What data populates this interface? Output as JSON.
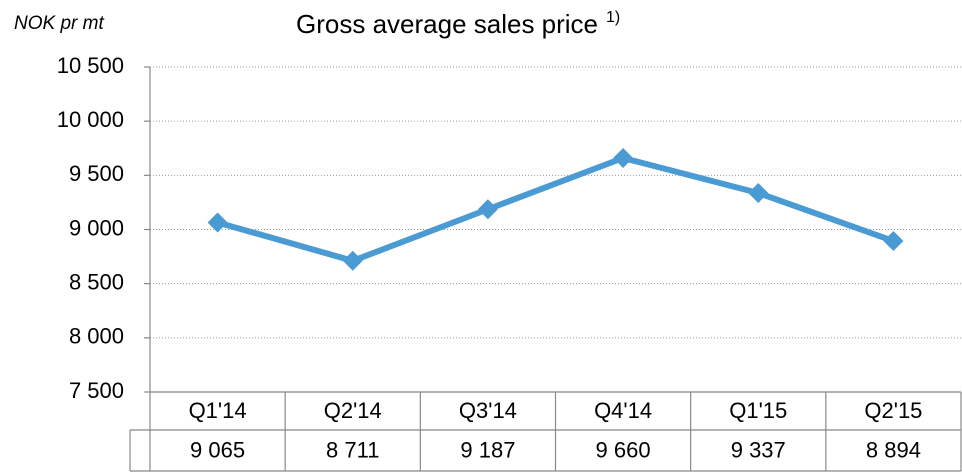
{
  "chart_data": {
    "type": "line",
    "title": "Gross average sales price",
    "title_note": "1)",
    "ylabel": "NOK pr mt",
    "categories": [
      "Q1'14",
      "Q2'14",
      "Q3'14",
      "Q4'14",
      "Q1'15",
      "Q2'15"
    ],
    "series": [
      {
        "color": "#4a9bd4",
        "values": [
          9065,
          8711,
          9187,
          9660,
          9337,
          8894
        ],
        "value_labels": [
          "9 065",
          "8 711",
          "9 187",
          "9 660",
          "9 337",
          "8 894"
        ]
      }
    ],
    "ylim": [
      7500,
      10500
    ],
    "yticks": [
      {
        "value": 7500,
        "label": "7 500"
      },
      {
        "value": 8000,
        "label": "8 000"
      },
      {
        "value": 8500,
        "label": "8 500"
      },
      {
        "value": 9000,
        "label": "9 000"
      },
      {
        "value": 9500,
        "label": "9 500"
      },
      {
        "value": 10000,
        "label": "10 000"
      },
      {
        "value": 10500,
        "label": "10 500"
      }
    ],
    "grid": true
  }
}
